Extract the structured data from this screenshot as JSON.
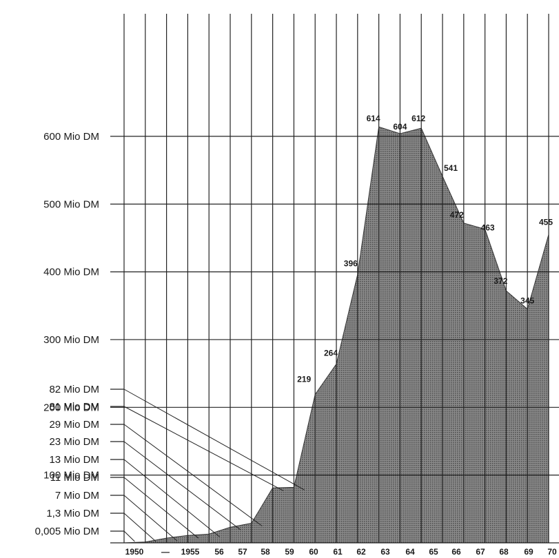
{
  "chart_data": {
    "type": "area",
    "unit": "Mio DM",
    "y_axis_ticks": [
      {
        "label": "600 Mio DM",
        "value": 600
      },
      {
        "label": "500 Mio DM",
        "value": 500
      },
      {
        "label": "400 Mio DM",
        "value": 400
      },
      {
        "label": "300 Mio DM",
        "value": 300
      },
      {
        "label": "200 Mio DM",
        "value": 200
      },
      {
        "label": "100 Mio DM",
        "value": 100
      }
    ],
    "small_value_labels": [
      {
        "label": "82 Mio DM",
        "value": 82,
        "year": "1958"
      },
      {
        "label": "81 Mio DM",
        "value": 81,
        "year": "1957"
      },
      {
        "label": "29 Mio DM",
        "value": 29,
        "year": "1956"
      },
      {
        "label": "23 Mio DM",
        "value": 23,
        "year": "1955"
      },
      {
        "label": "13 Mio DM",
        "value": 13,
        "year": "1954"
      },
      {
        "label": "11 Mio DM",
        "value": 11,
        "year": "1953"
      },
      {
        "label": "7 Mio DM",
        "value": 7,
        "year": "1952"
      },
      {
        "label": "1,3 Mio DM",
        "value": 1.3,
        "year": "1951"
      },
      {
        "label": "0,005 Mio DM",
        "value": 0.005,
        "year": "1950"
      }
    ],
    "x_tick_labels": [
      "1950",
      "—",
      "1955",
      "56",
      "57",
      "58",
      "59",
      "60",
      "61",
      "62",
      "63",
      "64",
      "65",
      "66",
      "67",
      "68",
      "69",
      "70"
    ],
    "points": [
      {
        "year": "1950",
        "value": 0.005
      },
      {
        "year": "1951",
        "value": 1.3
      },
      {
        "year": "1952",
        "value": 7
      },
      {
        "year": "1953",
        "value": 11
      },
      {
        "year": "1954",
        "value": 13
      },
      {
        "year": "1955",
        "value": 23
      },
      {
        "year": "1956",
        "value": 29
      },
      {
        "year": "1957",
        "value": 81
      },
      {
        "year": "1958",
        "value": 82
      },
      {
        "year": "1959",
        "value": 219
      },
      {
        "year": "1960",
        "value": 264
      },
      {
        "year": "1961",
        "value": 396
      },
      {
        "year": "1962",
        "value": 614
      },
      {
        "year": "1963",
        "value": 604
      },
      {
        "year": "1964",
        "value": 612
      },
      {
        "year": "1965",
        "value": 541
      },
      {
        "year": "1966",
        "value": 472
      },
      {
        "year": "1967",
        "value": 463
      },
      {
        "year": "1968",
        "value": 372
      },
      {
        "year": "1969",
        "value": 345
      },
      {
        "year": "1970",
        "value": 455
      }
    ],
    "data_labels": [
      "219",
      "264",
      "396",
      "614",
      "604",
      "612",
      "541",
      "472",
      "463",
      "372",
      "345",
      "455"
    ],
    "ylim": [
      0,
      620
    ],
    "grid": true,
    "fill_color": "#7a7a7a"
  }
}
